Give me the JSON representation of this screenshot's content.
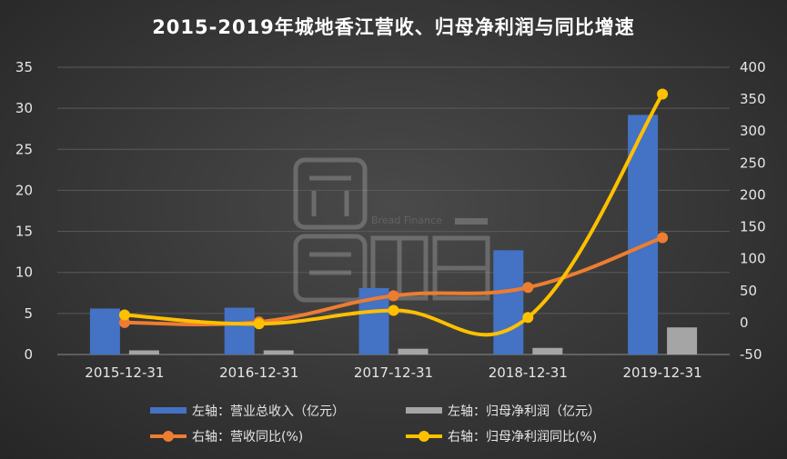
{
  "chart_data": {
    "type": "bar",
    "title": "2015-2019年城地香江营收、归母净利润与同比增速",
    "categories": [
      "2015-12-31",
      "2016-12-31",
      "2017-12-31",
      "2018-12-31",
      "2019-12-31"
    ],
    "left_axis": {
      "ylim": [
        0,
        35
      ],
      "ticks": [
        "0",
        "5",
        "10",
        "15",
        "20",
        "25",
        "30",
        "35"
      ]
    },
    "right_axis": {
      "ylim": [
        -50,
        400
      ],
      "ticks": [
        "-50",
        "0",
        "50",
        "100",
        "150",
        "200",
        "250",
        "300",
        "350",
        "400"
      ]
    },
    "grid": true,
    "legend_position": "bottom",
    "series": [
      {
        "name": "左轴：营业总收入（亿元）",
        "type": "bar",
        "axis": "left",
        "color": "#4472c4",
        "values": [
          5.6,
          5.7,
          8.1,
          12.7,
          29.2
        ]
      },
      {
        "name": "左轴：归母净利润（亿元）",
        "type": "bar",
        "axis": "left",
        "color": "#a5a5a5",
        "values": [
          0.5,
          0.5,
          0.7,
          0.8,
          3.3
        ]
      },
      {
        "name": "右轴：营收同比(%)",
        "type": "line",
        "axis": "right",
        "color": "#ed7d31",
        "values": [
          0,
          1,
          42,
          55,
          133
        ]
      },
      {
        "name": "右轴：归母净利润同比(%)",
        "type": "line",
        "axis": "right",
        "color": "#ffc000",
        "values": [
          12,
          -2,
          19,
          8,
          358
        ]
      }
    ]
  },
  "watermark": {
    "text": "Bread Finance",
    "icon": "bread-finance-logo-icon"
  }
}
